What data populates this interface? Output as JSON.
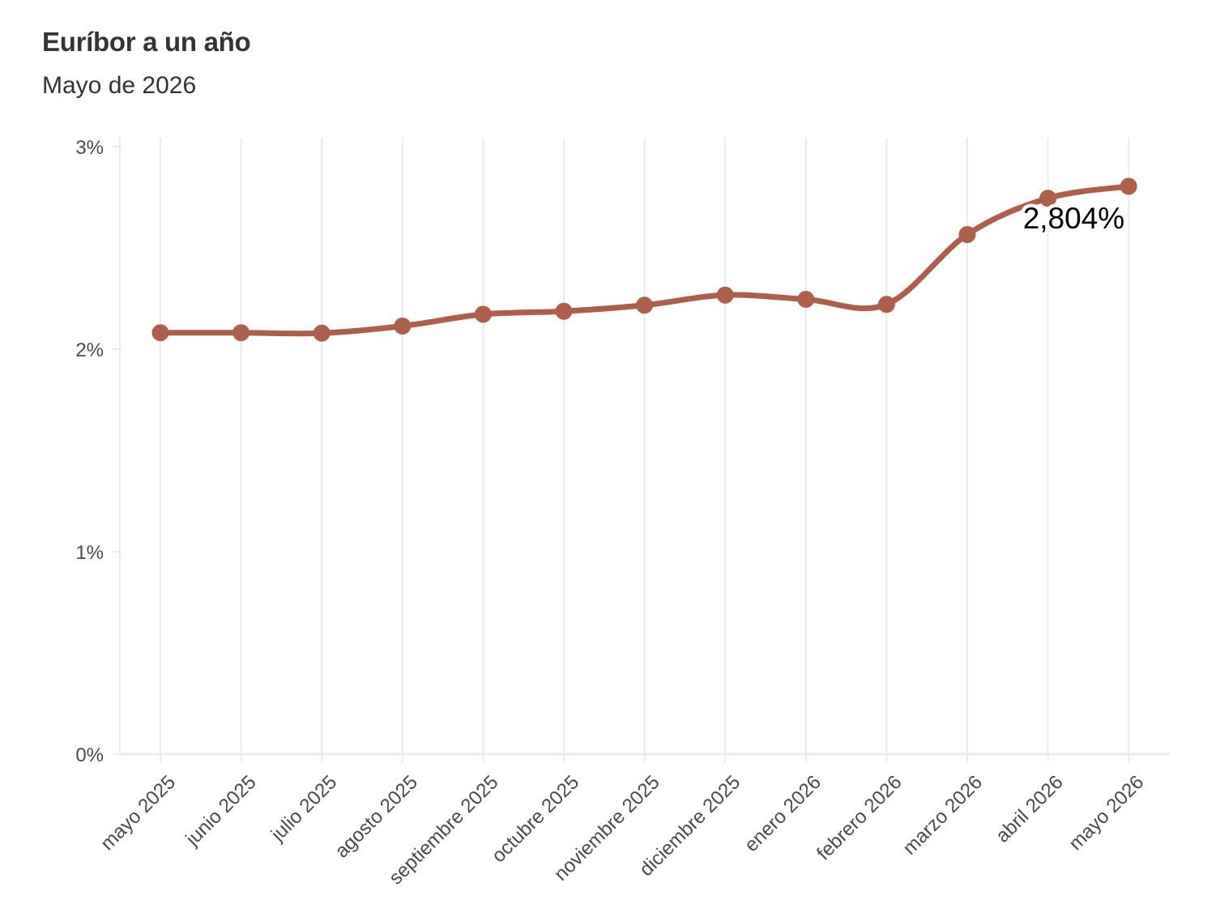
{
  "header": {
    "title": "Euríbor a un año",
    "subtitle": "Mayo de 2026"
  },
  "chart_data": {
    "type": "line",
    "title": "Euríbor a un año",
    "subtitle": "Mayo de 2026",
    "xlabel": "",
    "ylabel": "",
    "categories": [
      "mayo 2025",
      "junio 2025",
      "julio 2025",
      "agosto 2025",
      "septiembre 2025",
      "octubre 2025",
      "noviembre 2025",
      "diciembre 2025",
      "enero 2026",
      "febrero 2026",
      "marzo 2026",
      "abril 2026",
      "mayo 2026"
    ],
    "series": [
      {
        "values": [
          2.081,
          2.081,
          2.079,
          2.114,
          2.172,
          2.187,
          2.217,
          2.267,
          2.246,
          2.221,
          2.566,
          2.745,
          2.804
        ],
        "color": "#b05e4c"
      }
    ],
    "ylim": [
      0,
      3
    ],
    "yticks": [
      "0%",
      "1%",
      "2%",
      "3%"
    ],
    "grid": "vertical",
    "annotation": {
      "text": "2,804%",
      "category": "mayo 2026"
    },
    "colors": {
      "line": "#b05e4c",
      "grid": "#ebebeb"
    }
  }
}
